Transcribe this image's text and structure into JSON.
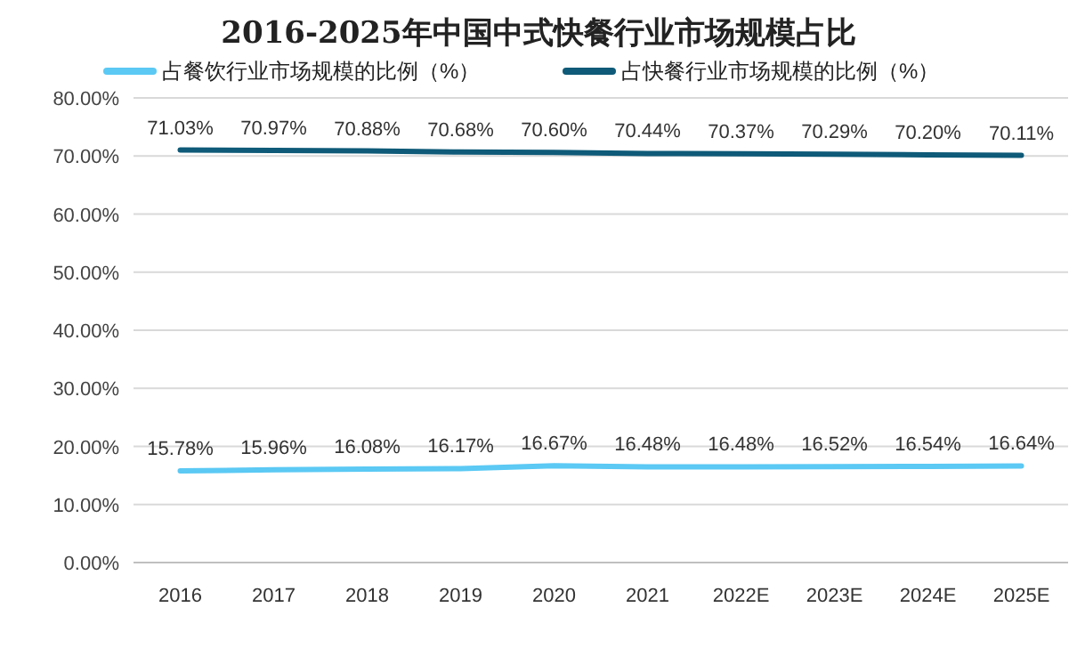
{
  "chart_data": {
    "type": "line",
    "title": "2016-2025年中国中式快餐行业市场规模占比",
    "categories": [
      "2016",
      "2017",
      "2018",
      "2019",
      "2020",
      "2021",
      "2022E",
      "2023E",
      "2024E",
      "2025E"
    ],
    "series": [
      {
        "name": "占餐饮行业市场规模的比例（%）",
        "color": "#5bc9f4",
        "values": [
          15.78,
          15.96,
          16.08,
          16.17,
          16.67,
          16.48,
          16.48,
          16.52,
          16.54,
          16.64
        ],
        "value_labels": [
          "15.78%",
          "15.96%",
          "16.08%",
          "16.17%",
          "16.67%",
          "16.48%",
          "16.48%",
          "16.52%",
          "16.54%",
          "16.64%"
        ]
      },
      {
        "name": "占快餐行业市场规模的比例（%）",
        "color": "#0e5a78",
        "values": [
          71.03,
          70.97,
          70.88,
          70.68,
          70.6,
          70.44,
          70.37,
          70.29,
          70.2,
          70.11
        ],
        "value_labels": [
          "71.03%",
          "70.97%",
          "70.88%",
          "70.68%",
          "70.60%",
          "70.44%",
          "70.37%",
          "70.29%",
          "70.20%",
          "70.11%"
        ]
      }
    ],
    "ylim": [
      0,
      80
    ],
    "yticks": [
      {
        "value": 0,
        "label": "0.00%"
      },
      {
        "value": 10,
        "label": "10.00%"
      },
      {
        "value": 20,
        "label": "20.00%"
      },
      {
        "value": 30,
        "label": "30.00%"
      },
      {
        "value": 40,
        "label": "40.00%"
      },
      {
        "value": 50,
        "label": "50.00%"
      },
      {
        "value": 60,
        "label": "60.00%"
      },
      {
        "value": 70,
        "label": "70.00%"
      },
      {
        "value": 80,
        "label": "80.00%"
      }
    ],
    "grid": "y",
    "legend": "top"
  }
}
